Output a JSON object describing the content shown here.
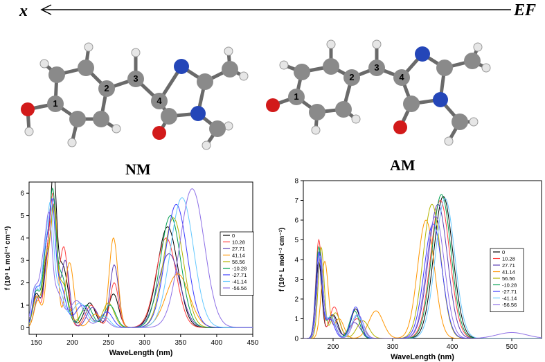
{
  "header": {
    "x_label": "x",
    "field_label": "EF"
  },
  "molecules": [
    {
      "title": "NM",
      "atom_labels": [
        "1",
        "2",
        "3",
        "4"
      ]
    },
    {
      "title": "AM",
      "atom_labels": [
        "1",
        "2",
        "3",
        "4"
      ]
    }
  ],
  "colors": {
    "carbon": "#8a8a8a",
    "hydrogen": "#e6e6e6",
    "oxygen": "#d21a1a",
    "nitrogen": "#2446b8",
    "series": [
      "#000000",
      "#ff3c3c",
      "#5a3cb4",
      "#ff9600",
      "#b4b400",
      "#00a050",
      "#3c3cff",
      "#64c8ff",
      "#8c6ee6"
    ]
  },
  "chart_data": [
    {
      "type": "line",
      "id": "NM",
      "title": "",
      "xlabel": "WaveLength (nm)",
      "ylabel": "f (10⁴ L mol⁻¹ cm⁻¹)",
      "xlim": [
        140,
        450
      ],
      "ylim": [
        -0.3,
        6.5
      ],
      "xticks": [
        150,
        200,
        250,
        300,
        350,
        400,
        450
      ],
      "yticks": [
        0,
        1,
        2,
        3,
        4,
        5,
        6
      ],
      "legend_position": "right",
      "series": [
        {
          "name": "0",
          "peaks": [
            [
              150,
              1.5,
              5
            ],
            [
              165,
              3.0,
              5
            ],
            [
              174,
              5.6,
              4
            ],
            [
              186,
              2.8,
              8
            ],
            [
              224,
              1.1,
              8
            ],
            [
              257,
              1.5,
              7
            ],
            [
              332,
              4.5,
              14
            ]
          ]
        },
        {
          "name": "10.28",
          "peaks": [
            [
              150,
              1.4,
              5
            ],
            [
              166,
              3.2,
              5
            ],
            [
              174,
              4.8,
              4
            ],
            [
              188,
              3.6,
              6
            ],
            [
              226,
              1.0,
              8
            ],
            [
              258,
              2.0,
              6
            ],
            [
              330,
              4.0,
              14
            ]
          ]
        },
        {
          "name": "27.71",
          "peaks": [
            [
              152,
              1.3,
              5
            ],
            [
              166,
              3.0,
              5
            ],
            [
              175,
              5.0,
              4
            ],
            [
              190,
              3.0,
              6
            ],
            [
              228,
              0.9,
              8
            ],
            [
              258,
              2.8,
              6
            ],
            [
              334,
              3.3,
              15
            ]
          ]
        },
        {
          "name": "41.14",
          "peaks": [
            [
              152,
              1.2,
              5
            ],
            [
              168,
              3.1,
              5
            ],
            [
              176,
              4.5,
              4
            ],
            [
              196,
              2.9,
              6
            ],
            [
              232,
              0.6,
              8
            ],
            [
              257,
              4.0,
              6
            ],
            [
              346,
              2.4,
              16
            ]
          ]
        },
        {
          "name": "56.56",
          "peaks": [
            [
              150,
              1.3,
              5
            ],
            [
              164,
              3.1,
              5
            ],
            [
              174,
              4.4,
              4
            ],
            [
              186,
              2.0,
              8
            ],
            [
              218,
              0.8,
              8
            ],
            [
              250,
              1.1,
              8
            ],
            [
              340,
              4.9,
              14
            ]
          ]
        },
        {
          "name": "-10.28",
          "peaks": [
            [
              150,
              1.6,
              5
            ],
            [
              164,
              3.4,
              5
            ],
            [
              173,
              4.6,
              4
            ],
            [
              184,
              2.4,
              8
            ],
            [
              220,
              1.0,
              8
            ],
            [
              252,
              1.0,
              8
            ],
            [
              336,
              5.0,
              14
            ]
          ]
        },
        {
          "name": "-27.71",
          "peaks": [
            [
              150,
              1.7,
              5
            ],
            [
              163,
              3.2,
              5
            ],
            [
              172,
              4.2,
              4
            ],
            [
              182,
              2.0,
              8
            ],
            [
              214,
              1.0,
              10
            ],
            [
              248,
              0.7,
              8
            ],
            [
              344,
              5.5,
              15
            ]
          ]
        },
        {
          "name": "-41.14",
          "peaks": [
            [
              148,
              1.8,
              5
            ],
            [
              162,
              3.0,
              5
            ],
            [
              170,
              3.9,
              4
            ],
            [
              180,
              1.8,
              8
            ],
            [
              210,
              1.1,
              10
            ],
            [
              244,
              0.5,
              8
            ],
            [
              352,
              5.8,
              16
            ]
          ]
        },
        {
          "name": "-56.56",
          "peaks": [
            [
              148,
              1.7,
              5
            ],
            [
              160,
              2.8,
              5
            ],
            [
              168,
              3.6,
              4
            ],
            [
              178,
              1.6,
              8
            ],
            [
              206,
              1.2,
              10
            ],
            [
              242,
              0.4,
              8
            ],
            [
              366,
              6.2,
              17
            ]
          ]
        }
      ]
    },
    {
      "type": "line",
      "id": "AM",
      "title": "",
      "xlabel": "WaveLength (nm)",
      "ylabel": "f (10⁴ L mol⁻¹ cm⁻¹)",
      "xlim": [
        150,
        550
      ],
      "ylim": [
        0,
        8
      ],
      "xticks": [
        200,
        300,
        400,
        500
      ],
      "yticks": [
        0,
        1,
        2,
        3,
        4,
        5,
        6,
        7,
        8
      ],
      "legend_position": "right",
      "series": [
        {
          "name": "0",
          "peaks": [
            [
              176,
              3.9,
              5
            ],
            [
              200,
              1.2,
              8
            ],
            [
              238,
              1.5,
              8
            ],
            [
              385,
              7.2,
              16
            ]
          ]
        },
        {
          "name": "10.28",
          "peaks": [
            [
              176,
              5.0,
              5
            ],
            [
              202,
              1.6,
              8
            ],
            [
              240,
              1.0,
              10
            ],
            [
              380,
              7.0,
              16
            ]
          ]
        },
        {
          "name": "27.71",
          "peaks": [
            [
              178,
              4.4,
              5
            ],
            [
              198,
              1.2,
              8
            ],
            [
              236,
              0.8,
              10
            ],
            [
              376,
              6.8,
              16
            ]
          ]
        },
        {
          "name": "41.14",
          "peaks": [
            [
              186,
              3.9,
              6
            ],
            [
              210,
              1.0,
              8
            ],
            [
              272,
              1.4,
              12
            ],
            [
              356,
              6.0,
              14
            ]
          ]
        },
        {
          "name": "56.56",
          "peaks": [
            [
              180,
              4.6,
              5
            ],
            [
              204,
              1.3,
              8
            ],
            [
              250,
              0.9,
              10
            ],
            [
              366,
              6.8,
              15
            ]
          ]
        },
        {
          "name": "-10.28",
          "peaks": [
            [
              176,
              4.6,
              5
            ],
            [
              196,
              1.1,
              8
            ],
            [
              236,
              1.4,
              8
            ],
            [
              382,
              7.3,
              16
            ]
          ]
        },
        {
          "name": "-27.71",
          "peaks": [
            [
              176,
              4.3,
              5
            ],
            [
              194,
              1.0,
              8
            ],
            [
              238,
              1.6,
              8
            ],
            [
              368,
              5.8,
              15
            ]
          ]
        },
        {
          "name": "-41.14",
          "peaks": [
            [
              178,
              4.1,
              5
            ],
            [
              196,
              1.1,
              8
            ],
            [
              240,
              1.2,
              9
            ],
            [
              388,
              7.1,
              16
            ]
          ]
        },
        {
          "name": "-56.56",
          "peaks": [
            [
              178,
              4.0,
              5
            ],
            [
              196,
              1.0,
              8
            ],
            [
              242,
              1.2,
              9
            ],
            [
              372,
              6.2,
              15
            ],
            [
              500,
              0.3,
              25
            ]
          ]
        }
      ]
    }
  ]
}
